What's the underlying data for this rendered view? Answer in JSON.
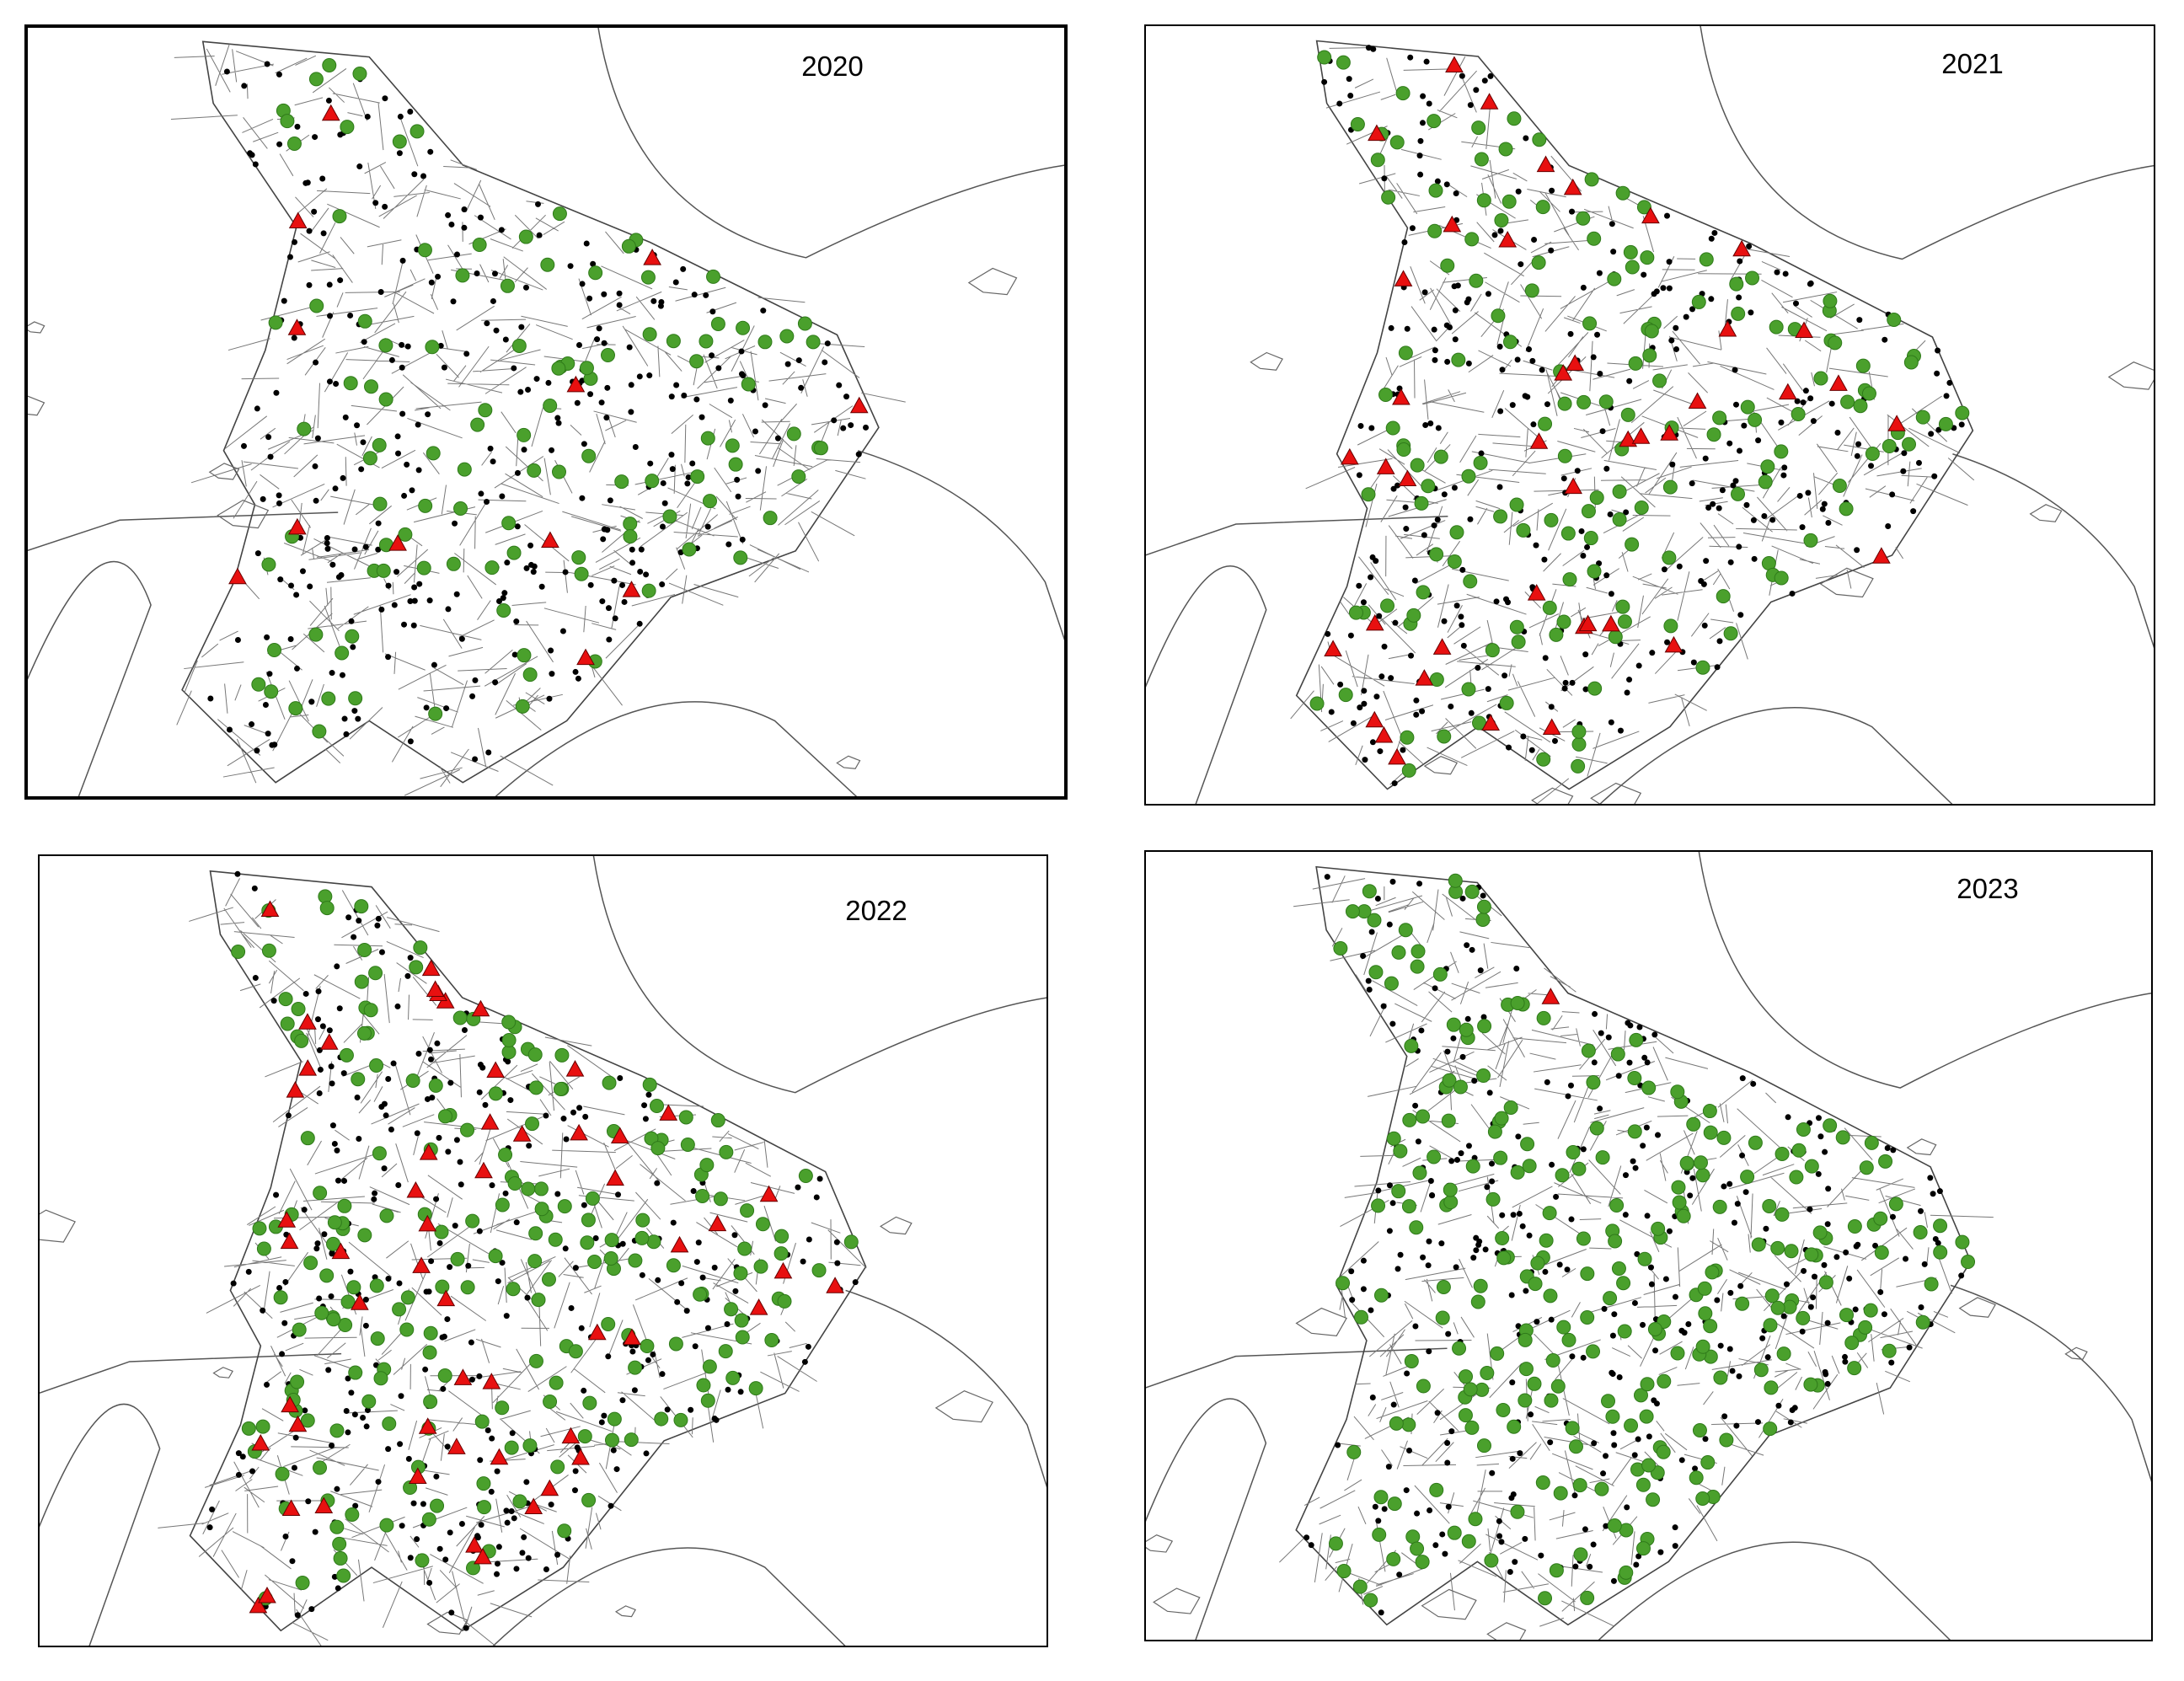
{
  "panels": [
    {
      "title": "2020"
    },
    {
      "title": "2021"
    },
    {
      "title": "2022"
    },
    {
      "title": "2023"
    }
  ]
}
